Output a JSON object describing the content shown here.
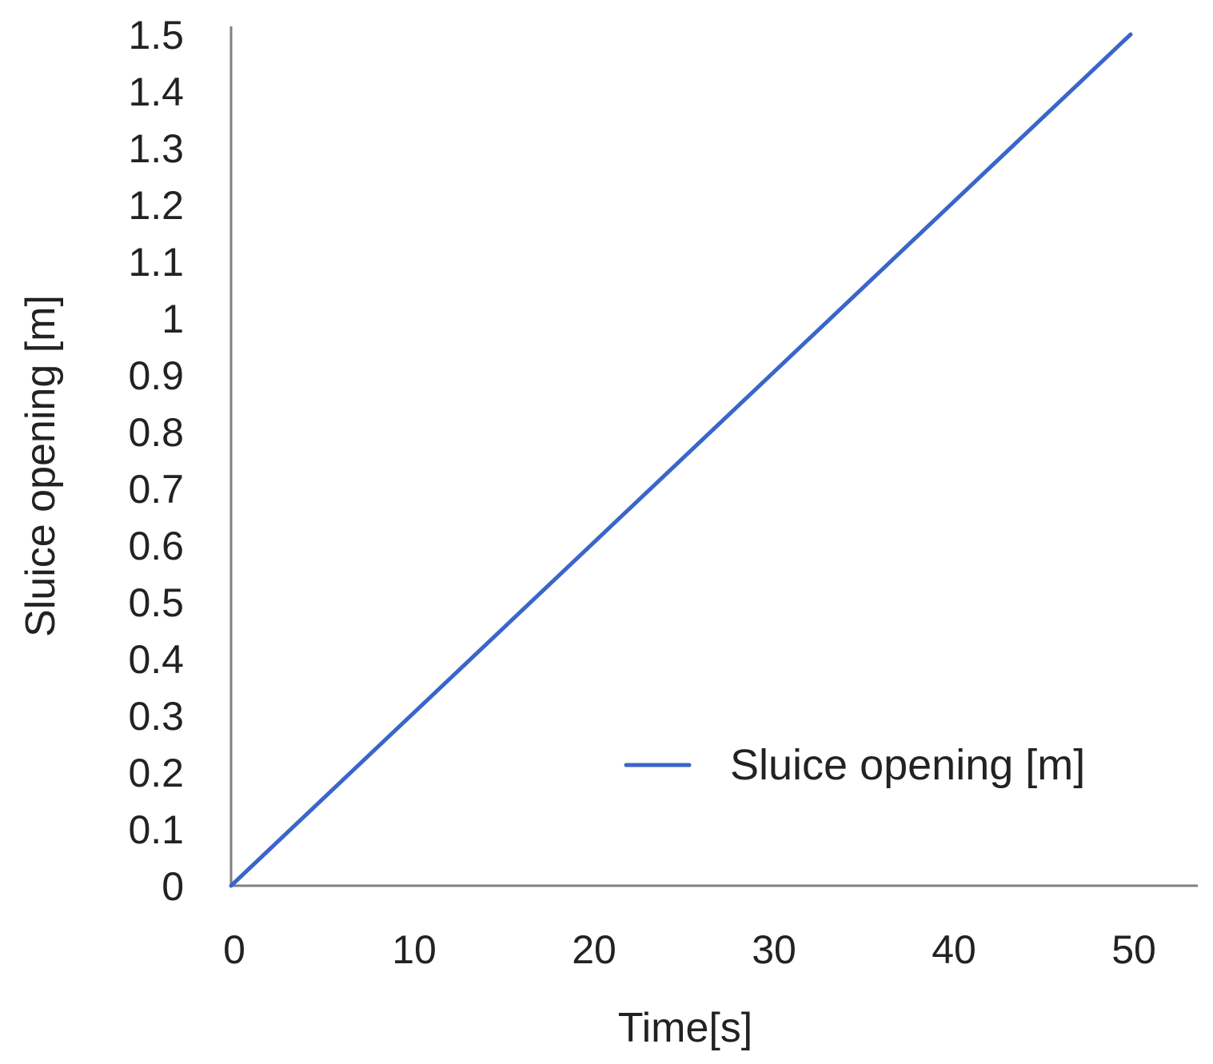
{
  "colors": {
    "series": "#3a66c9",
    "axis": "#7f7f7f",
    "text": "#222222"
  },
  "chart_data": {
    "type": "line",
    "title": "",
    "xlabel": "Time[s]",
    "ylabel": "Sluice opening [m]",
    "xlim": [
      0,
      54
    ],
    "ylim": [
      0,
      1.5
    ],
    "x_ticks": [
      0,
      10,
      20,
      30,
      40,
      50
    ],
    "x_tick_labels": [
      "0",
      "10",
      "20",
      "30",
      "40",
      "50"
    ],
    "y_ticks": [
      0,
      0.1,
      0.2,
      0.3,
      0.4,
      0.5,
      0.6,
      0.7,
      0.8,
      0.9,
      1,
      1.1,
      1.2,
      1.3,
      1.4,
      1.5
    ],
    "y_tick_labels": [
      "0",
      "0.1",
      "0.2",
      "0.3",
      "0.4",
      "0.5",
      "0.6",
      "0.7",
      "0.8",
      "0.9",
      "1",
      "1.1",
      "1.2",
      "1.3",
      "1.4",
      "1.5"
    ],
    "grid": false,
    "legend_position": "bottom-right",
    "series": [
      {
        "name": "Sluice opening [m]",
        "x": [
          0,
          50
        ],
        "y": [
          0,
          1.5
        ]
      }
    ]
  }
}
